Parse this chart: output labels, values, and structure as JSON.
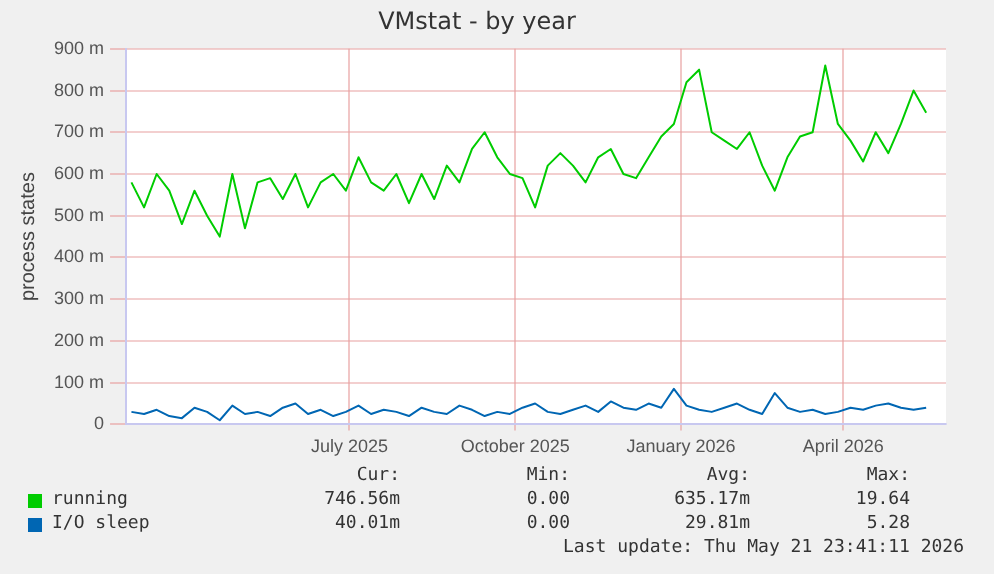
{
  "chart_data": {
    "type": "line",
    "title": "VMstat - by year",
    "ylabel": "process states",
    "x": [
      "2025-03-02",
      "2025-03-09",
      "2025-03-16",
      "2025-03-23",
      "2025-03-30",
      "2025-04-06",
      "2025-04-13",
      "2025-04-20",
      "2025-04-27",
      "2025-05-04",
      "2025-05-11",
      "2025-05-18",
      "2025-05-25",
      "2025-06-01",
      "2025-06-08",
      "2025-06-15",
      "2025-06-22",
      "2025-06-29",
      "2025-07-06",
      "2025-07-13",
      "2025-07-20",
      "2025-07-27",
      "2025-08-03",
      "2025-08-10",
      "2025-08-17",
      "2025-08-24",
      "2025-08-31",
      "2025-09-07",
      "2025-09-14",
      "2025-09-21",
      "2025-09-28",
      "2025-10-05",
      "2025-10-12",
      "2025-10-19",
      "2025-10-26",
      "2025-11-02",
      "2025-11-09",
      "2025-11-16",
      "2025-11-23",
      "2025-11-30",
      "2025-12-07",
      "2025-12-14",
      "2025-12-21",
      "2025-12-28",
      "2026-01-04",
      "2026-01-11",
      "2026-01-18",
      "2026-01-25",
      "2026-02-01",
      "2026-02-08",
      "2026-02-15",
      "2026-02-22",
      "2026-03-01",
      "2026-03-08",
      "2026-03-15",
      "2026-03-22",
      "2026-03-29",
      "2026-04-05",
      "2026-04-12",
      "2026-04-19",
      "2026-04-26",
      "2026-05-03",
      "2026-05-10",
      "2026-05-17"
    ],
    "series": [
      {
        "name": "running",
        "color": "#00cc00",
        "values": [
          580,
          520,
          600,
          560,
          480,
          560,
          500,
          450,
          600,
          470,
          580,
          590,
          540,
          600,
          520,
          580,
          600,
          560,
          640,
          580,
          560,
          600,
          530,
          600,
          540,
          620,
          580,
          660,
          700,
          640,
          600,
          590,
          520,
          620,
          650,
          620,
          580,
          640,
          660,
          600,
          590,
          640,
          690,
          720,
          820,
          850,
          700,
          680,
          660,
          700,
          620,
          560,
          640,
          690,
          700,
          860,
          720,
          680,
          630,
          700,
          650,
          720,
          800,
          747
        ]
      },
      {
        "name": "I/O sleep",
        "color": "#0066b3",
        "values": [
          30,
          25,
          35,
          20,
          15,
          40,
          30,
          10,
          45,
          25,
          30,
          20,
          40,
          50,
          25,
          35,
          20,
          30,
          45,
          25,
          35,
          30,
          20,
          40,
          30,
          25,
          45,
          35,
          20,
          30,
          25,
          40,
          50,
          30,
          25,
          35,
          45,
          30,
          55,
          40,
          35,
          50,
          40,
          85,
          45,
          35,
          30,
          40,
          50,
          35,
          25,
          75,
          40,
          30,
          35,
          25,
          30,
          40,
          35,
          45,
          50,
          40,
          35,
          40
        ]
      }
    ],
    "xlim": [
      "2025-02-27",
      "2026-05-28"
    ],
    "xticks": [
      {
        "value": "2025-07-01",
        "label": "July 2025"
      },
      {
        "value": "2025-10-01",
        "label": "October 2025"
      },
      {
        "value": "2026-01-01",
        "label": "January 2026"
      },
      {
        "value": "2026-04-01",
        "label": "April 2026"
      }
    ],
    "ylim": [
      0,
      900
    ],
    "yticks": [
      0,
      {
        "value": 100,
        "label": "100 m"
      },
      {
        "value": 200,
        "label": "200 m"
      },
      {
        "value": 300,
        "label": "300 m"
      },
      {
        "value": 400,
        "label": "400 m"
      },
      {
        "value": 500,
        "label": "500 m"
      },
      {
        "value": 600,
        "label": "600 m"
      },
      {
        "value": 700,
        "label": "700 m"
      },
      {
        "value": 800,
        "label": "800 m"
      },
      {
        "value": 900,
        "label": "900 m"
      }
    ],
    "grid": true,
    "legend": "bottom",
    "marker": "none",
    "line_style": "solid",
    "annotations": [
      "Cur:",
      "Min:",
      "Avg:",
      "Max:",
      "746.56m",
      "0.00",
      "635.17m",
      "19.64",
      "40.01m",
      "0.00",
      "29.81m",
      "5.28",
      "Last update: Thu May 21 23:41:11 2026"
    ]
  }
}
